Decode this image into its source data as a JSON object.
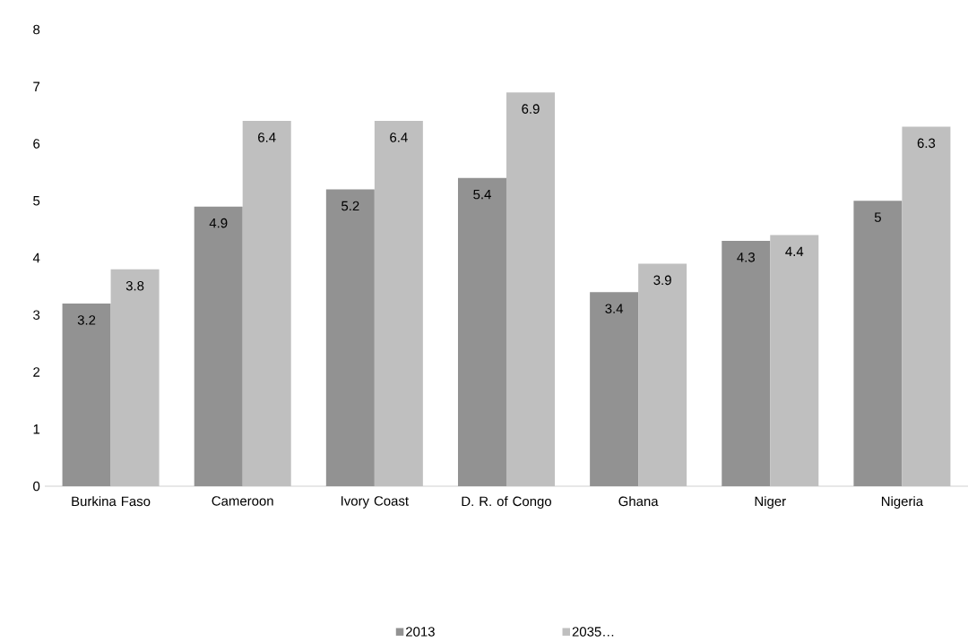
{
  "chart_data": {
    "type": "bar",
    "categories": [
      "Burkina Faso",
      "Cameroon",
      "Ivory Coast",
      "D. R. of Congo",
      "Ghana",
      "Niger",
      "Nigeria"
    ],
    "series": [
      {
        "name": "2013",
        "color": "#929292",
        "values": [
          3.2,
          4.9,
          5.2,
          5.4,
          3.4,
          4.3,
          5
        ]
      },
      {
        "name": "2035…",
        "color": "#bfbfbf",
        "values": [
          3.8,
          6.4,
          6.4,
          6.9,
          3.9,
          4.4,
          6.3
        ]
      }
    ],
    "ylim": [
      0,
      8
    ],
    "yticks": [
      0,
      1,
      2,
      3,
      4,
      5,
      6,
      7,
      8
    ],
    "grid": false,
    "legend": "bottom",
    "data_labels": true
  }
}
